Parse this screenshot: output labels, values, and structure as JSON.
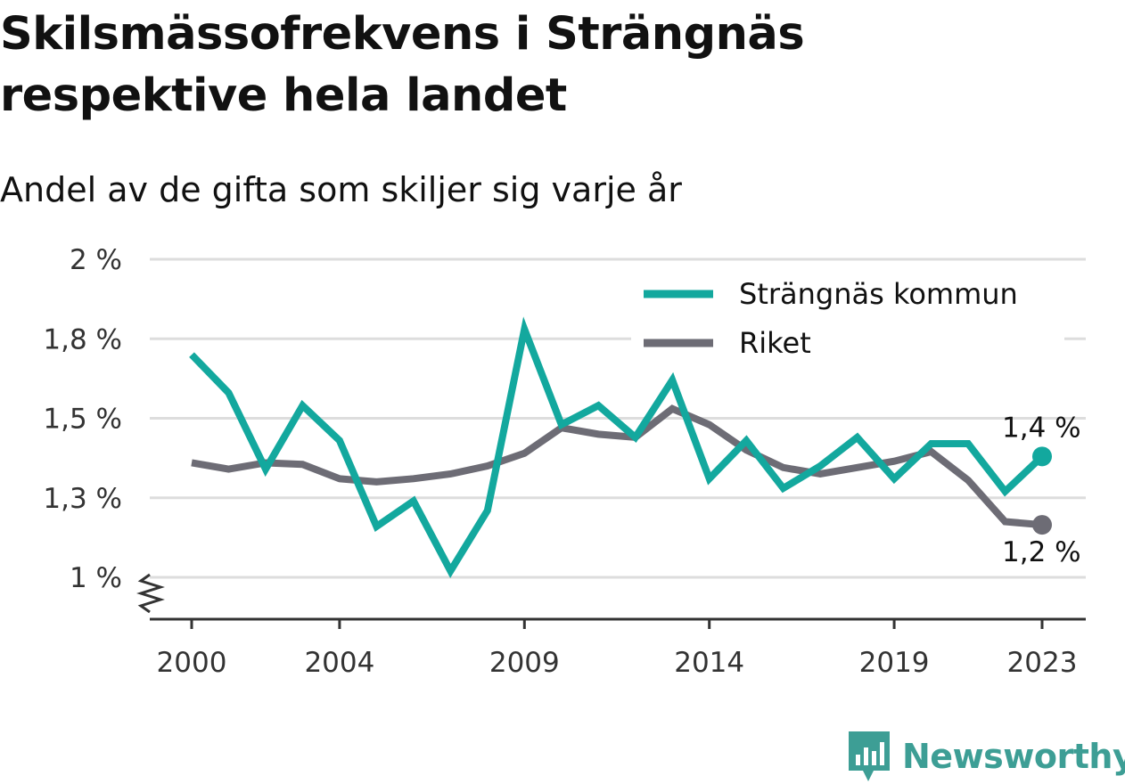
{
  "title_line1": "Skilsmässofrekvens i Strängnäs",
  "title_line2": "respektive hela landet",
  "subtitle": "Andel av de gifta som skiljer sig varje år",
  "brand": "Newsworthy",
  "colors": {
    "strangnas": "#13a89e",
    "riket": "#6d6c75",
    "grid": "#dddddd",
    "axis": "#333333",
    "brand": "#3d9e95"
  },
  "icons": {
    "axis_break": "zigzag-axis-break-icon",
    "logo": "newsworthy-logo-icon"
  },
  "chart_data": {
    "type": "line",
    "title": "Skilsmässofrekvens i Strängnäs respektive hela landet",
    "subtitle": "Andel av de gifta som skiljer sig varje år",
    "xlabel": "",
    "ylabel": "",
    "ylim": [
      1.0,
      2.0
    ],
    "y_ticks": [
      1.0,
      1.25,
      1.5,
      1.75,
      2.0
    ],
    "y_tick_labels": [
      "1 %",
      "1,3 %",
      "1,5 %",
      "1,8 %",
      "2 %"
    ],
    "y_axis_break": true,
    "x_ticks": [
      2000,
      2004,
      2009,
      2014,
      2019,
      2023
    ],
    "x_tick_labels": [
      "2000",
      "2004",
      "2009",
      "2014",
      "2019",
      "2023"
    ],
    "grid": true,
    "legend_position": "top-right",
    "x": [
      2000,
      2001,
      2002,
      2003,
      2004,
      2005,
      2006,
      2007,
      2008,
      2009,
      2010,
      2011,
      2012,
      2013,
      2014,
      2015,
      2016,
      2017,
      2018,
      2019,
      2020,
      2021,
      2022,
      2023
    ],
    "series": [
      {
        "name": "Strängnäs kommun",
        "color": "#13a89e",
        "values": [
          1.7,
          1.58,
          1.34,
          1.54,
          1.43,
          1.16,
          1.24,
          1.02,
          1.21,
          1.78,
          1.48,
          1.54,
          1.44,
          1.62,
          1.31,
          1.43,
          1.28,
          1.35,
          1.44,
          1.31,
          1.42,
          1.42,
          1.27,
          1.38
        ],
        "end_label": "1,4 %"
      },
      {
        "name": "Riket",
        "color": "#6d6c75",
        "values": [
          1.36,
          1.34,
          1.36,
          1.355,
          1.31,
          1.3,
          1.31,
          1.325,
          1.35,
          1.39,
          1.47,
          1.45,
          1.44,
          1.53,
          1.48,
          1.4,
          1.345,
          1.325,
          1.345,
          1.365,
          1.395,
          1.305,
          1.175,
          1.165
        ],
        "end_label": "1,2 %"
      }
    ]
  }
}
